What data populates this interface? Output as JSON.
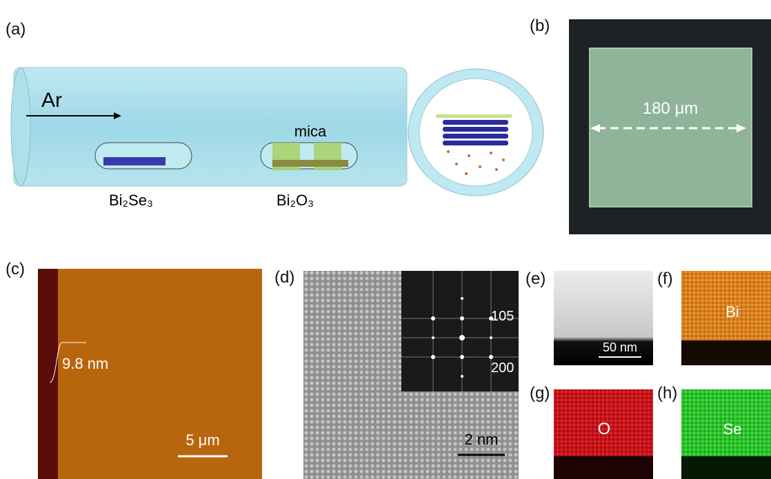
{
  "panels": {
    "a": {
      "label": "(a)",
      "gas": "Ar",
      "substrate": "mica",
      "source": "Bi₂Se₃",
      "oxide": "Bi₂O₃"
    },
    "b": {
      "label": "(b)",
      "scale": "180 μm"
    },
    "c": {
      "label": "(c)",
      "step": "9.8 nm",
      "scale": "5 μm"
    },
    "d": {
      "label": "(d)",
      "spot1": "105",
      "spot2": "200",
      "scale": "2 nm"
    },
    "e": {
      "label": "(e)",
      "scale": "50 nm"
    },
    "f": {
      "label": "(f)",
      "element": "Bi"
    },
    "g": {
      "label": "(g)",
      "element": "O"
    },
    "h": {
      "label": "(h)",
      "element": "Se"
    }
  }
}
